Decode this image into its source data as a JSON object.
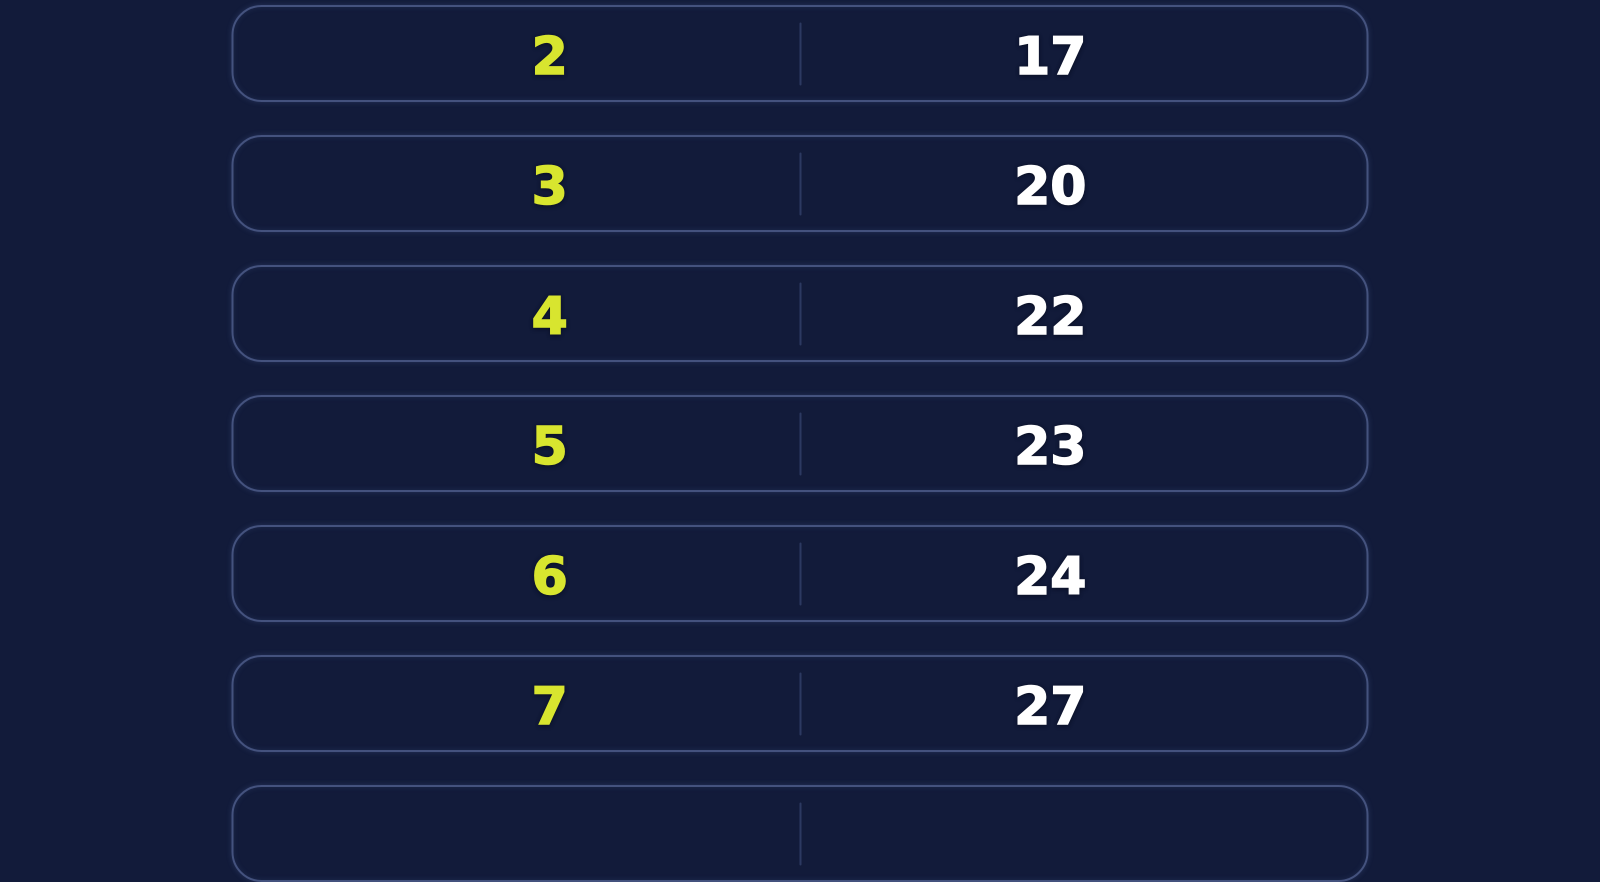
{
  "page": {
    "description": "Dark navy list of pill-shaped rows pairing a highlighted number with a value",
    "background_color": "#121B3A"
  },
  "colors": {
    "row_border": "#44527E",
    "divider": "#2C3961",
    "number_accent": "#D8E52F",
    "value_text": "#FFFFFF"
  },
  "table": {
    "rows": [
      {
        "left": "2",
        "right": "17"
      },
      {
        "left": "3",
        "right": "20"
      },
      {
        "left": "4",
        "right": "22"
      },
      {
        "left": "5",
        "right": "23"
      },
      {
        "left": "6",
        "right": "24"
      },
      {
        "left": "7",
        "right": "27"
      },
      {
        "left": "",
        "right": ""
      }
    ]
  }
}
